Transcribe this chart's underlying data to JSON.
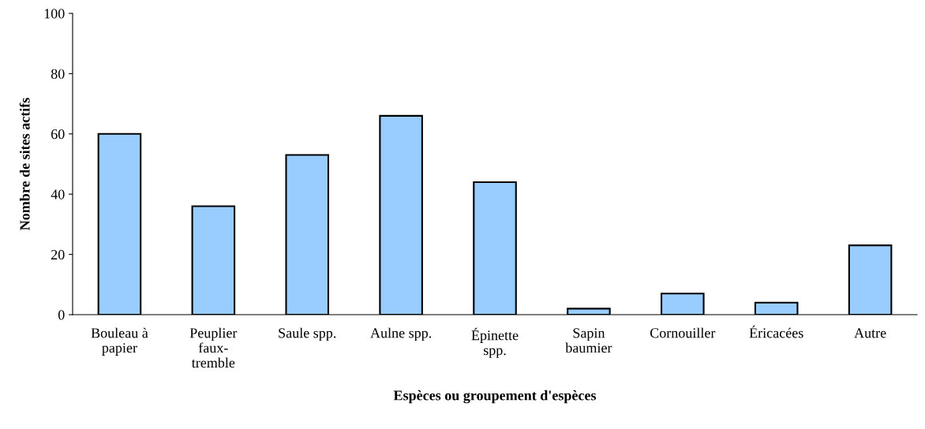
{
  "chart_data": {
    "type": "bar",
    "xlabel": "Espèces ou groupement d'espèces",
    "ylabel": "Nombre de sites actifs",
    "categories": [
      "Bouleau à\npapier",
      "Peuplier\nfaux-\ntremble",
      "Saule spp.",
      "Aulne spp.",
      "Épinette\nspp.",
      "Sapin\nbaumier",
      "Cornouiller",
      "Éricacées",
      "Autre"
    ],
    "values": [
      60,
      36,
      53,
      66,
      44,
      2,
      7,
      4,
      23
    ],
    "color": "#99ccff",
    "ylim": [
      0,
      100
    ],
    "yticks": [
      0,
      20,
      40,
      60,
      80,
      100
    ],
    "grid": false,
    "legend": false
  }
}
